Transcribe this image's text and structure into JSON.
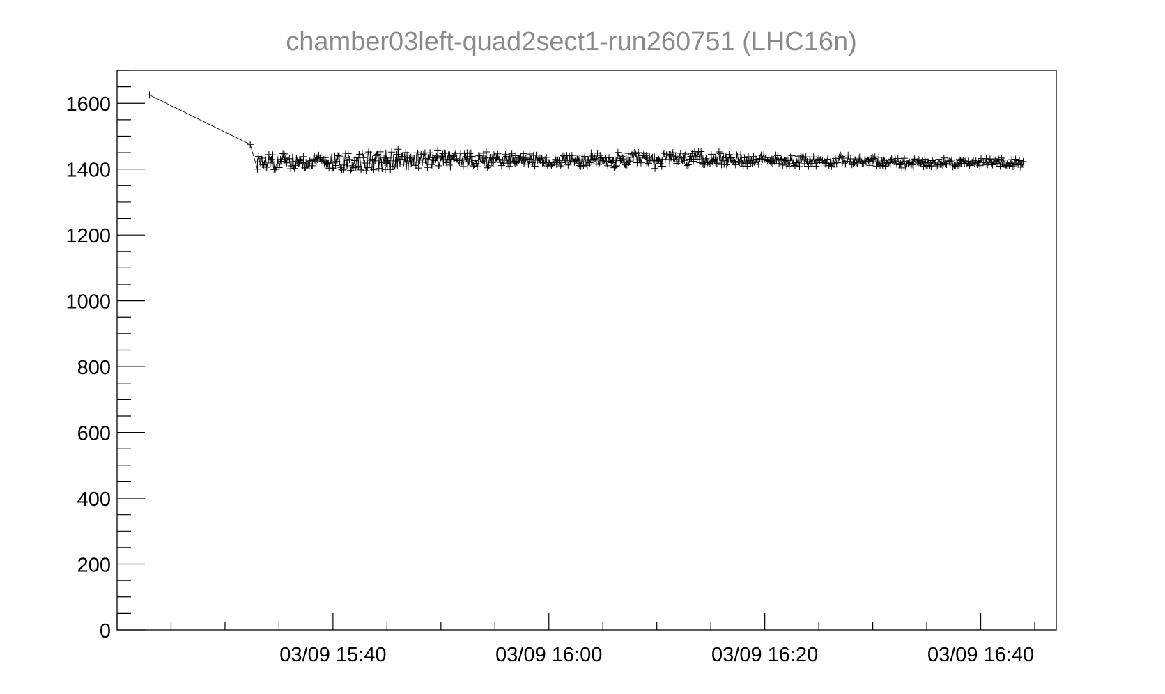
{
  "chart_data": {
    "type": "line",
    "title": "chamber03left-quad2sect1-run260751 (LHC16n)",
    "xlabel": "",
    "ylabel": "",
    "marker": "plus",
    "color": "#000000",
    "x_axis": {
      "format": "MM/DD HH:MM",
      "range": [
        "03/09 15:20",
        "03/09 16:47"
      ],
      "major_ticks": [
        "03/09 15:40",
        "03/09 16:00",
        "03/09 16:20",
        "03/09 16:40"
      ]
    },
    "y_axis": {
      "range": [
        0,
        1700
      ],
      "major_ticks": [
        0,
        200,
        400,
        600,
        800,
        1000,
        1200,
        1400,
        1600
      ]
    },
    "y_tick_labels": [
      "0",
      "200",
      "400",
      "600",
      "800",
      "1000",
      "1200",
      "1400",
      "1600"
    ],
    "x_tick_labels": [
      "03/09 15:40",
      "03/09 16:00",
      "03/09 16:20",
      "03/09 16:40"
    ],
    "series": [
      {
        "x": [
          "03/09 15:23",
          "03/09 15:32:20",
          "03/09 15:33:00"
        ],
        "y": [
          1625,
          1475,
          1400
        ]
      }
    ],
    "band": {
      "x_start": "03/09 15:33",
      "x_end": "03/09 16:44",
      "y_center": [
        1418,
        1425,
        1425,
        1430,
        1428,
        1425,
        1425,
        1430,
        1430,
        1425,
        1425,
        1420,
        1420,
        1420
      ],
      "y_spread": [
        35,
        45,
        50,
        45,
        35,
        30,
        35,
        40,
        30,
        25,
        25,
        25,
        20,
        20
      ]
    }
  }
}
